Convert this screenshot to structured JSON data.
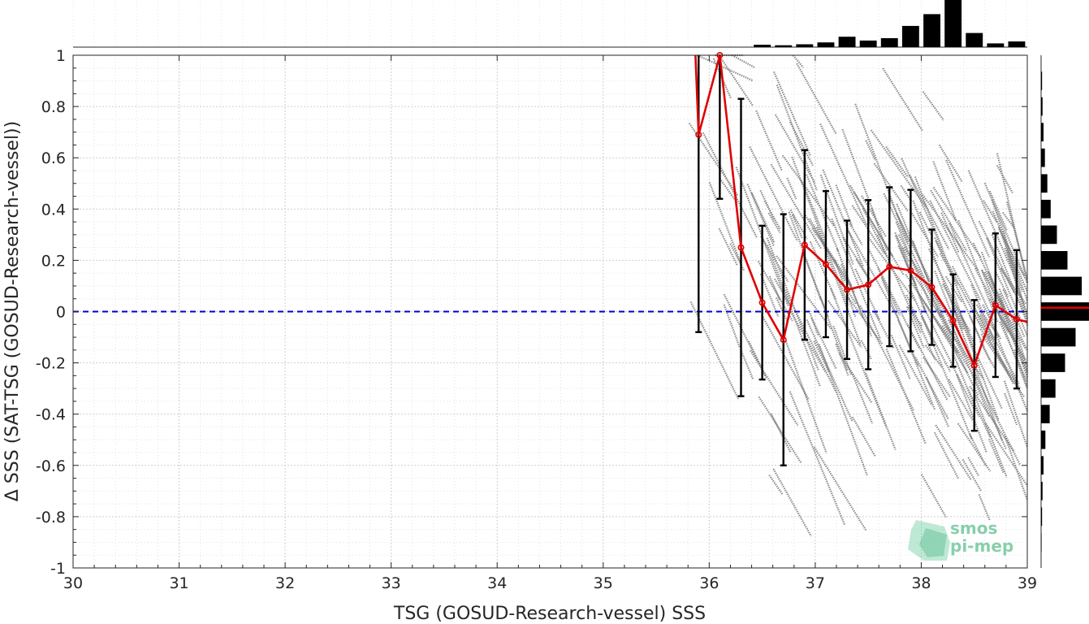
{
  "chart_data": {
    "type": "scatter",
    "title": "",
    "xlabel": "TSG (GOSUD-Research-vessel) SSS",
    "ylabel": "Δ SSS (SAT-TSG (GOSUD-Research-vessel))",
    "xlim": [
      30,
      39
    ],
    "ylim": [
      -1,
      1
    ],
    "xticks": [
      "30",
      "31",
      "32",
      "33",
      "34",
      "35",
      "36",
      "37",
      "38",
      "39"
    ],
    "yticks": [
      "1",
      "0.8",
      "0.6",
      "0.4",
      "0.2",
      "0",
      "-0.2",
      "-0.4",
      "-0.6",
      "-0.8",
      "-1"
    ],
    "grid": true,
    "reference_line": {
      "y": 0,
      "style": "dashed",
      "color": "#0000cc"
    },
    "scatter_color": "#808080",
    "mean_color": "#e00000",
    "errorbar_color": "#000000",
    "binned_stats": {
      "x": [
        35.9,
        36.1,
        36.3,
        36.5,
        36.7,
        36.9,
        37.1,
        37.3,
        37.5,
        37.7,
        37.9,
        38.1,
        38.3,
        38.5,
        38.7,
        38.9
      ],
      "mean": [
        0.69,
        1.0,
        0.25,
        0.035,
        -0.11,
        0.26,
        0.185,
        0.085,
        0.105,
        0.175,
        0.16,
        0.095,
        -0.035,
        -0.21,
        0.025,
        -0.03
      ],
      "std": [
        0.77,
        0.56,
        0.58,
        0.3,
        0.49,
        0.37,
        0.285,
        0.27,
        0.33,
        0.31,
        0.315,
        0.225,
        0.18,
        0.255,
        0.28,
        0.27
      ]
    },
    "mean_line_extra": {
      "x": [
        35.87,
        39.0
      ],
      "y": [
        1.0,
        -0.04
      ]
    },
    "top_histogram": {
      "bin_centers": [
        36.5,
        36.7,
        36.9,
        37.1,
        37.3,
        37.5,
        37.7,
        37.9,
        38.1,
        38.3,
        38.5,
        38.7,
        38.9
      ],
      "relative_counts": [
        0.05,
        0.04,
        0.06,
        0.1,
        0.22,
        0.14,
        0.19,
        0.45,
        0.7,
        1.0,
        0.3,
        0.08,
        0.12
      ]
    },
    "right_histogram": {
      "bin_centers": [
        0.9,
        0.8,
        0.7,
        0.6,
        0.5,
        0.4,
        0.3,
        0.2,
        0.1,
        0.0,
        -0.1,
        -0.2,
        -0.3,
        -0.4,
        -0.5,
        -0.6,
        -0.7,
        -0.8,
        -0.9
      ],
      "relative_counts": [
        0.02,
        0.03,
        0.05,
        0.08,
        0.13,
        0.2,
        0.33,
        0.55,
        0.85,
        1.0,
        0.72,
        0.5,
        0.3,
        0.18,
        0.09,
        0.05,
        0.03,
        0.02,
        0.01
      ],
      "marker_y": 0.015
    }
  },
  "logo": {
    "line1": "smos",
    "line2": "pi-mep"
  }
}
